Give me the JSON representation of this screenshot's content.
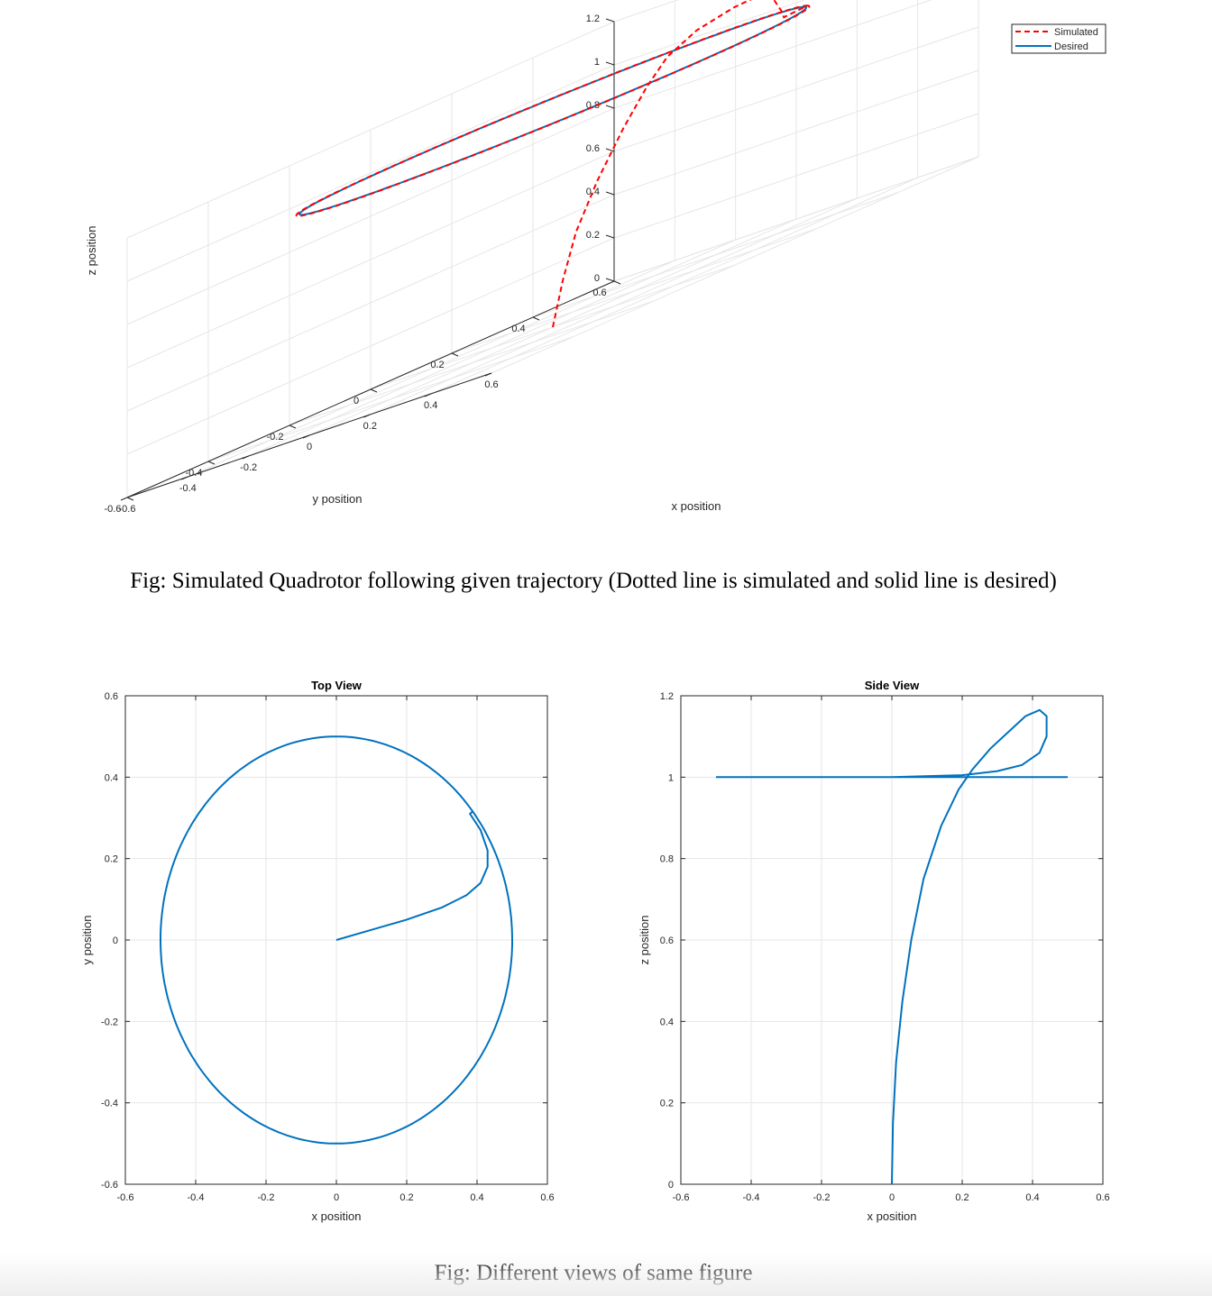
{
  "captions": {
    "top": "Fig: Simulated Quadrotor following given trajectory (Dotted line is simulated and solid line is desired)",
    "bottom": "Fig: Different views of same figure"
  },
  "colors": {
    "desired": "#0072BD",
    "simulated": "#FF0000",
    "grid": "#e6e6e6",
    "axis": "#262626"
  },
  "chart_data": [
    {
      "type": "line",
      "subtype": "3d",
      "title": "",
      "xlabel": "x position",
      "ylabel": "y position",
      "zlabel": "z position",
      "xlim": [
        -0.6,
        0.6
      ],
      "ylim": [
        -0.6,
        0.6
      ],
      "zlim": [
        0,
        1.2
      ],
      "x_ticks": [
        "-0.6",
        "-0.4",
        "-0.2",
        "0",
        "0.2",
        "0.4",
        "0.6"
      ],
      "y_ticks": [
        "-0.6",
        "-0.4",
        "-0.2",
        "0",
        "0.2",
        "0.4",
        "0.6"
      ],
      "z_ticks": [
        "0",
        "0.2",
        "0.4",
        "0.6",
        "0.8",
        "1",
        "1.2"
      ],
      "grid": true,
      "legend": "top-right",
      "series": [
        {
          "name": "Simulated",
          "style": "dashed",
          "description": "Rises from origin to a loop above desired height then joins the circle of radius 0.5 at z = 1",
          "climb": [
            [
              0,
              0,
              0
            ],
            [
              0.02,
              0.01,
              0.2
            ],
            [
              0.05,
              0.02,
              0.4
            ],
            [
              0.1,
              0.035,
              0.6
            ],
            [
              0.16,
              0.055,
              0.8
            ],
            [
              0.21,
              0.075,
              0.95
            ],
            [
              0.25,
              0.095,
              1.05
            ],
            [
              0.3,
              0.13,
              1.12
            ],
            [
              0.37,
              0.17,
              1.16
            ],
            [
              0.42,
              0.2,
              1.17
            ],
            [
              0.435,
              0.22,
              1.12
            ],
            [
              0.42,
              0.25,
              1.05
            ],
            [
              0.36,
              0.3,
              1.01
            ],
            [
              0.25,
              0.44,
              1.0
            ]
          ],
          "circle": {
            "radius": 0.5,
            "z": 1.0
          }
        },
        {
          "name": "Desired",
          "style": "solid",
          "circle": {
            "radius": 0.5,
            "z": 1.0
          }
        }
      ]
    },
    {
      "type": "line",
      "title": "Top View",
      "xlabel": "x position",
      "ylabel": "y position",
      "xlim": [
        -0.6,
        0.6
      ],
      "ylim": [
        -0.6,
        0.6
      ],
      "x_ticks": [
        "-0.6",
        "-0.4",
        "-0.2",
        "0",
        "0.2",
        "0.4",
        "0.6"
      ],
      "y_ticks": [
        "-0.6",
        "-0.4",
        "-0.2",
        "0",
        "0.2",
        "0.4",
        "0.6"
      ],
      "grid": true,
      "series": [
        {
          "climb": [
            [
              0,
              0
            ],
            [
              0.1,
              0.025
            ],
            [
              0.2,
              0.05
            ],
            [
              0.3,
              0.08
            ],
            [
              0.37,
              0.11
            ],
            [
              0.41,
              0.14
            ],
            [
              0.43,
              0.18
            ],
            [
              0.43,
              0.22
            ],
            [
              0.41,
              0.27
            ],
            [
              0.38,
              0.31
            ]
          ],
          "circle": {
            "radius": 0.5
          }
        }
      ]
    },
    {
      "type": "line",
      "title": "Side View",
      "xlabel": "x position",
      "ylabel": "z position",
      "xlim": [
        -0.6,
        0.6
      ],
      "ylim": [
        0,
        1.2
      ],
      "x_ticks": [
        "-0.6",
        "-0.4",
        "-0.2",
        "0",
        "0.2",
        "0.4",
        "0.6"
      ],
      "y_ticks": [
        "0",
        "0.2",
        "0.4",
        "0.6",
        "0.8",
        "1",
        "1.2"
      ],
      "grid": true,
      "series": [
        {
          "points": [
            [
              0,
              0
            ],
            [
              0.003,
              0.15
            ],
            [
              0.012,
              0.3
            ],
            [
              0.03,
              0.45
            ],
            [
              0.055,
              0.6
            ],
            [
              0.09,
              0.75
            ],
            [
              0.14,
              0.88
            ],
            [
              0.19,
              0.97
            ],
            [
              0.23,
              1.02
            ],
            [
              0.28,
              1.07
            ],
            [
              0.33,
              1.11
            ],
            [
              0.38,
              1.15
            ],
            [
              0.42,
              1.165
            ],
            [
              0.44,
              1.15
            ],
            [
              0.44,
              1.1
            ],
            [
              0.42,
              1.06
            ],
            [
              0.37,
              1.03
            ],
            [
              0.3,
              1.015
            ],
            [
              0.2,
              1.005
            ],
            [
              0,
              1.0
            ],
            [
              -0.5,
              1.0
            ],
            [
              0.5,
              1.0
            ]
          ]
        }
      ]
    }
  ]
}
